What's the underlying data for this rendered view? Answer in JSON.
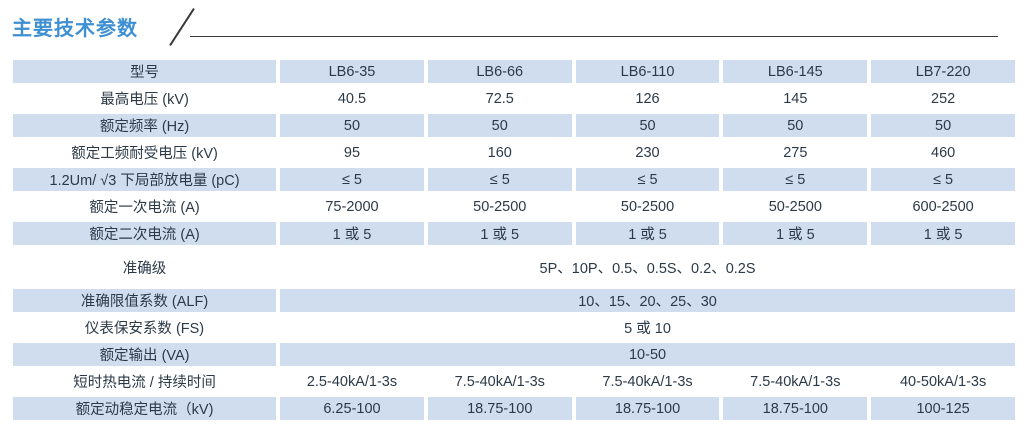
{
  "page": {
    "title": "主要技术参数"
  },
  "colors": {
    "title_blue": "#3e90d2",
    "row_blue": "#cfddef",
    "text": "#2c3a47",
    "rule": "#3a3a3a"
  },
  "table": {
    "header": {
      "label": "型号",
      "models": [
        "LB6-35",
        "LB6-66",
        "LB6-110",
        "LB6-145",
        "LB7-220"
      ]
    },
    "rows": [
      {
        "label": "最高电压 (kV)",
        "values": [
          "40.5",
          "72.5",
          "126",
          "145",
          "252"
        ]
      },
      {
        "label": "额定频率 (Hz)",
        "values": [
          "50",
          "50",
          "50",
          "50",
          "50"
        ]
      },
      {
        "label": "额定工频耐受电压 (kV)",
        "values": [
          "95",
          "160",
          "230",
          "275",
          "460"
        ]
      },
      {
        "label": "1.2Um/ √3 下局部放电量 (pC)",
        "values": [
          "≤ 5",
          "≤ 5",
          "≤ 5",
          "≤ 5",
          "≤ 5"
        ]
      },
      {
        "label": "额定一次电流 (A)",
        "values": [
          "75-2000",
          "50-2500",
          "50-2500",
          "50-2500",
          "600-2500"
        ]
      },
      {
        "label": "额定二次电流 (A)",
        "values": [
          "1 或 5",
          "1 或 5",
          "1 或 5",
          "1 或 5",
          "1 或 5"
        ]
      },
      {
        "label": "准确级",
        "span": "5P、10P、0.5、0.5S、0.2、0.2S",
        "tall": true
      },
      {
        "label": "准确限值系数 (ALF)",
        "span": "10、15、20、25、30"
      },
      {
        "label": "仪表保安系数 (FS)",
        "span": "5 或 10"
      },
      {
        "label": "额定输出 (VA)",
        "span": "10-50"
      },
      {
        "label": "短时热电流 / 持续时间",
        "values": [
          "2.5-40kA/1-3s",
          "7.5-40kA/1-3s",
          "7.5-40kA/1-3s",
          "7.5-40kA/1-3s",
          "40-50kA/1-3s"
        ]
      },
      {
        "label": "额定动稳定电流（kV)",
        "values": [
          "6.25-100",
          "18.75-100",
          "18.75-100",
          "18.75-100",
          "100-125"
        ]
      }
    ]
  }
}
